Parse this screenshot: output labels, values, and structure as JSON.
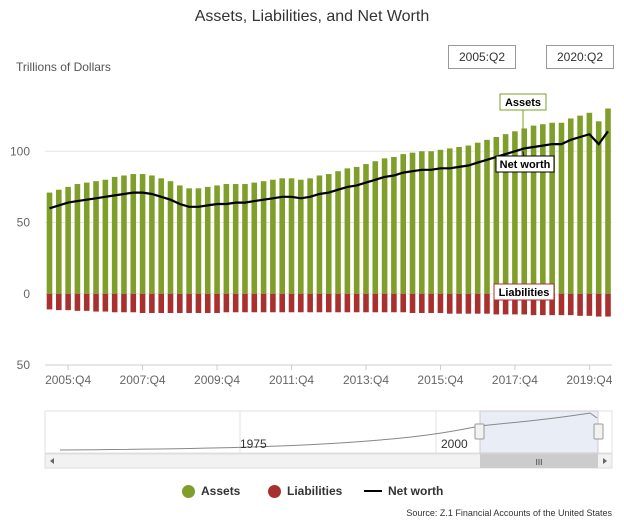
{
  "title": "Assets, Liabilities, and Net Worth",
  "range_buttons": {
    "start": "2005:Q2",
    "end": "2020:Q2"
  },
  "y_axis_label": "Trillions of Dollars",
  "legend": {
    "assets": "Assets",
    "liabilities": "Liabilities",
    "net_worth": "Net worth"
  },
  "annotations": {
    "assets": "Assets",
    "net_worth": "Net worth",
    "liabilities": "Liabilities"
  },
  "source": "Source: Z.1 Financial Accounts of the United States",
  "navigator": {
    "labels": [
      "1975",
      "2000"
    ],
    "scroll_grip": "III"
  },
  "colors": {
    "assets": "#7f9f2a",
    "liabilities": "#a8302f",
    "net_worth": "#000000",
    "grid": "#e6e6e6"
  },
  "chart_data": {
    "type": "bar",
    "title": "Assets, Liabilities, and Net Worth",
    "ylabel": "Trillions of Dollars",
    "ylim": [
      -50,
      150
    ],
    "yticks": [
      {
        "value": 100,
        "label": "100"
      },
      {
        "value": 50,
        "label": "50"
      },
      {
        "value": 0,
        "label": "0"
      },
      {
        "value": -50,
        "label": "50"
      }
    ],
    "xticks": [
      "2005:Q4",
      "2007:Q4",
      "2009:Q4",
      "2011:Q4",
      "2013:Q4",
      "2015:Q4",
      "2017:Q4",
      "2019:Q4"
    ],
    "x": [
      "2005:Q2",
      "2005:Q3",
      "2005:Q4",
      "2006:Q1",
      "2006:Q2",
      "2006:Q3",
      "2006:Q4",
      "2007:Q1",
      "2007:Q2",
      "2007:Q3",
      "2007:Q4",
      "2008:Q1",
      "2008:Q2",
      "2008:Q3",
      "2008:Q4",
      "2009:Q1",
      "2009:Q2",
      "2009:Q3",
      "2009:Q4",
      "2010:Q1",
      "2010:Q2",
      "2010:Q3",
      "2010:Q4",
      "2011:Q1",
      "2011:Q2",
      "2011:Q3",
      "2011:Q4",
      "2012:Q1",
      "2012:Q2",
      "2012:Q3",
      "2012:Q4",
      "2013:Q1",
      "2013:Q2",
      "2013:Q3",
      "2013:Q4",
      "2014:Q1",
      "2014:Q2",
      "2014:Q3",
      "2014:Q4",
      "2015:Q1",
      "2015:Q2",
      "2015:Q3",
      "2015:Q4",
      "2016:Q1",
      "2016:Q2",
      "2016:Q3",
      "2016:Q4",
      "2017:Q1",
      "2017:Q2",
      "2017:Q3",
      "2017:Q4",
      "2018:Q1",
      "2018:Q2",
      "2018:Q3",
      "2018:Q4",
      "2019:Q1",
      "2019:Q2",
      "2019:Q3",
      "2019:Q4",
      "2020:Q1",
      "2020:Q2"
    ],
    "series": [
      {
        "name": "Assets",
        "type": "bar",
        "values": [
          71,
          73,
          75,
          77,
          78,
          79,
          80,
          82,
          83,
          84,
          84,
          83,
          81,
          79,
          76,
          74,
          74,
          75,
          76,
          77,
          77,
          77,
          78,
          79,
          80,
          81,
          81,
          80,
          81,
          83,
          84,
          86,
          88,
          89,
          91,
          93,
          95,
          96,
          98,
          99,
          100,
          100,
          101,
          102,
          103,
          104,
          106,
          108,
          110,
          112,
          114,
          116,
          118,
          119,
          120,
          120,
          123,
          125,
          127,
          121,
          130
        ]
      },
      {
        "name": "Liabilities",
        "type": "bar",
        "values": [
          -11,
          -11.5,
          -11.5,
          -12,
          -12,
          -12.5,
          -12.5,
          -13,
          -13,
          -13,
          -13.5,
          -13.5,
          -13.5,
          -13.5,
          -13.5,
          -13.5,
          -13.5,
          -13.5,
          -13.5,
          -13,
          -13,
          -13,
          -13,
          -13,
          -13,
          -13,
          -13,
          -13,
          -13,
          -13,
          -13,
          -13,
          -13,
          -13,
          -13,
          -13,
          -13,
          -13,
          -13,
          -13.5,
          -13.5,
          -13.5,
          -13.5,
          -14,
          -14,
          -14,
          -14,
          -14,
          -14.5,
          -14.5,
          -14.5,
          -14.5,
          -15,
          -15,
          -15,
          -15,
          -15,
          -15.5,
          -15.5,
          -16,
          -16
        ]
      },
      {
        "name": "Net worth",
        "type": "line",
        "values": [
          60,
          62,
          64,
          65,
          66,
          67,
          68,
          69,
          70,
          71,
          71,
          70,
          68,
          66,
          63,
          61,
          61,
          62,
          63,
          63,
          64,
          64,
          65,
          66,
          67,
          68,
          68,
          67,
          68,
          70,
          71,
          73,
          75,
          76,
          78,
          80,
          82,
          83,
          85,
          86,
          87,
          87,
          88,
          88,
          89,
          90,
          92,
          94,
          96,
          98,
          100,
          102,
          103,
          104,
          105,
          105,
          108,
          110,
          112,
          105,
          114
        ]
      }
    ]
  }
}
